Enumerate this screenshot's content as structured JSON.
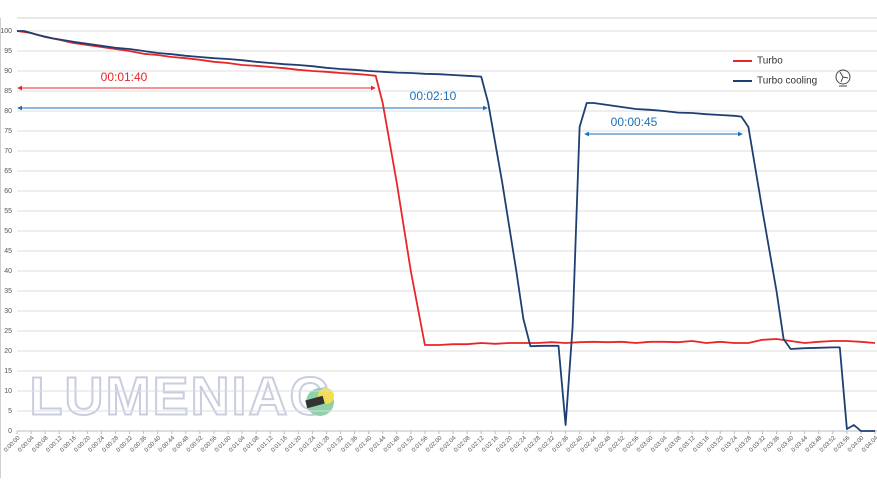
{
  "chart_data": {
    "type": "line",
    "watermark": "LUMENIAC",
    "annotations": [
      "00:01:40",
      "00:02:10",
      "00:00:45"
    ],
    "series": [
      {
        "name": "Turbo",
        "color": "#e8262a",
        "x": [
          0,
          4,
          8,
          12,
          16,
          20,
          24,
          28,
          32,
          36,
          40,
          44,
          48,
          52,
          56,
          60,
          64,
          68,
          72,
          76,
          80,
          84,
          88,
          92,
          96,
          100,
          102,
          104,
          108,
          112,
          116,
          120,
          124,
          128,
          132,
          136,
          140,
          144,
          148,
          152,
          156,
          160,
          164,
          168,
          172,
          176,
          180,
          184,
          188,
          192,
          196,
          200,
          204,
          208,
          212,
          216,
          220,
          224,
          228,
          232,
          236,
          240,
          244
        ],
        "values": [
          100,
          99.5,
          98.5,
          97.8,
          97,
          96.5,
          96,
          95.5,
          95,
          94.3,
          94,
          93.5,
          93.2,
          92.8,
          92.3,
          92,
          91.5,
          91.3,
          91,
          90.7,
          90.3,
          90,
          89.8,
          89.5,
          89.3,
          89,
          88.8,
          82,
          62,
          40,
          21.5,
          21.5,
          21.7,
          21.7,
          22,
          21.8,
          22,
          22,
          22,
          22.2,
          22,
          22.2,
          22.3,
          22.2,
          22.3,
          22,
          22.3,
          22.3,
          22.2,
          22.5,
          22,
          22.3,
          22,
          22,
          22.8,
          23,
          22.5,
          22,
          22.3,
          22.5,
          22.5,
          22.3,
          22
        ]
      },
      {
        "name": "Turbo cooling",
        "color": "#1f3f73",
        "x": [
          0,
          2,
          6,
          10,
          16,
          20,
          24,
          28,
          32,
          36,
          40,
          44,
          48,
          52,
          56,
          60,
          64,
          68,
          72,
          76,
          80,
          84,
          88,
          92,
          96,
          100,
          104,
          108,
          112,
          116,
          120,
          124,
          128,
          132,
          134,
          138,
          142,
          144,
          146,
          150,
          154,
          156,
          158,
          160,
          162,
          164,
          168,
          172,
          176,
          180,
          184,
          188,
          192,
          196,
          200,
          204,
          206,
          208,
          212,
          216,
          218,
          220,
          224,
          228,
          232,
          234,
          236,
          238,
          240,
          244
        ],
        "values": [
          100,
          100,
          99,
          98.2,
          97.3,
          96.8,
          96.3,
          95.8,
          95.5,
          95,
          94.5,
          94.2,
          93.8,
          93.5,
          93.2,
          93,
          92.7,
          92.3,
          92,
          91.7,
          91.5,
          91.2,
          90.8,
          90.5,
          90.3,
          90,
          89.8,
          89.6,
          89.5,
          89.3,
          89.2,
          89,
          88.8,
          88.6,
          82,
          62,
          40,
          28,
          21.2,
          21.3,
          21.3,
          1.5,
          26,
          76,
          82,
          82,
          81.5,
          81,
          80.5,
          80.3,
          80,
          79.6,
          79.5,
          79.2,
          79,
          78.8,
          78.6,
          76,
          55,
          35,
          23,
          20.5,
          20.7,
          20.8,
          20.9,
          20.9,
          0.5,
          1.5,
          0,
          0
        ]
      }
    ],
    "xlim": [
      0,
      244
    ],
    "xticks": [
      {
        "value": 0,
        "label": "0:00:00"
      },
      {
        "value": 4,
        "label": "0:00:04"
      },
      {
        "value": 8,
        "label": "0:00:08"
      },
      {
        "value": 12,
        "label": "0:00:12"
      },
      {
        "value": 16,
        "label": "0:00:16"
      },
      {
        "value": 20,
        "label": "0:00:20"
      },
      {
        "value": 24,
        "label": "0:00:24"
      },
      {
        "value": 28,
        "label": "0:00:28"
      },
      {
        "value": 32,
        "label": "0:00:32"
      },
      {
        "value": 36,
        "label": "0:00:36"
      },
      {
        "value": 40,
        "label": "0:00:40"
      },
      {
        "value": 44,
        "label": "0:00:44"
      },
      {
        "value": 48,
        "label": "0:00:48"
      },
      {
        "value": 52,
        "label": "0:00:52"
      },
      {
        "value": 56,
        "label": "0:00:56"
      },
      {
        "value": 60,
        "label": "0:01:00"
      },
      {
        "value": 64,
        "label": "0:01:04"
      },
      {
        "value": 68,
        "label": "0:01:08"
      },
      {
        "value": 72,
        "label": "0:01:12"
      },
      {
        "value": 76,
        "label": "0:01:16"
      },
      {
        "value": 80,
        "label": "0:01:20"
      },
      {
        "value": 84,
        "label": "0:01:24"
      },
      {
        "value": 88,
        "label": "0:01:28"
      },
      {
        "value": 92,
        "label": "0:01:32"
      },
      {
        "value": 96,
        "label": "0:01:36"
      },
      {
        "value": 100,
        "label": "0:01:40"
      },
      {
        "value": 104,
        "label": "0:01:44"
      },
      {
        "value": 108,
        "label": "0:01:48"
      },
      {
        "value": 112,
        "label": "0:01:52"
      },
      {
        "value": 116,
        "label": "0:01:56"
      },
      {
        "value": 120,
        "label": "0:02:00"
      },
      {
        "value": 124,
        "label": "0:02:04"
      },
      {
        "value": 128,
        "label": "0:02:08"
      },
      {
        "value": 132,
        "label": "0:02:12"
      },
      {
        "value": 136,
        "label": "0:02:16"
      },
      {
        "value": 140,
        "label": "0:02:20"
      },
      {
        "value": 144,
        "label": "0:02:24"
      },
      {
        "value": 148,
        "label": "0:02:28"
      },
      {
        "value": 152,
        "label": "0:02:32"
      },
      {
        "value": 156,
        "label": "0:02:36"
      },
      {
        "value": 160,
        "label": "0:02:40"
      },
      {
        "value": 164,
        "label": "0:02:44"
      },
      {
        "value": 168,
        "label": "0:02:48"
      },
      {
        "value": 172,
        "label": "0:02:52"
      },
      {
        "value": 176,
        "label": "0:02:56"
      },
      {
        "value": 180,
        "label": "0:03:00"
      },
      {
        "value": 184,
        "label": "0:03:04"
      },
      {
        "value": 188,
        "label": "0:03:08"
      },
      {
        "value": 192,
        "label": "0:03:12"
      },
      {
        "value": 196,
        "label": "0:03:16"
      },
      {
        "value": 200,
        "label": "0:03:20"
      },
      {
        "value": 204,
        "label": "0:03:24"
      },
      {
        "value": 208,
        "label": "0:03:28"
      },
      {
        "value": 212,
        "label": "0:03:32"
      },
      {
        "value": 216,
        "label": "0:03:36"
      },
      {
        "value": 220,
        "label": "0:03:40"
      },
      {
        "value": 224,
        "label": "0:03:44"
      },
      {
        "value": 228,
        "label": "0:03:48"
      },
      {
        "value": 232,
        "label": "0:03:52"
      },
      {
        "value": 236,
        "label": "0:03:56"
      },
      {
        "value": 240,
        "label": "0:04:00"
      },
      {
        "value": 244,
        "label": "0:04:04"
      }
    ],
    "ylim": [
      0,
      100
    ],
    "yticks": [
      0,
      5,
      10,
      15,
      20,
      25,
      30,
      35,
      40,
      45,
      50,
      55,
      60,
      65,
      70,
      75,
      80,
      85,
      90,
      95,
      100
    ],
    "grid": true
  }
}
